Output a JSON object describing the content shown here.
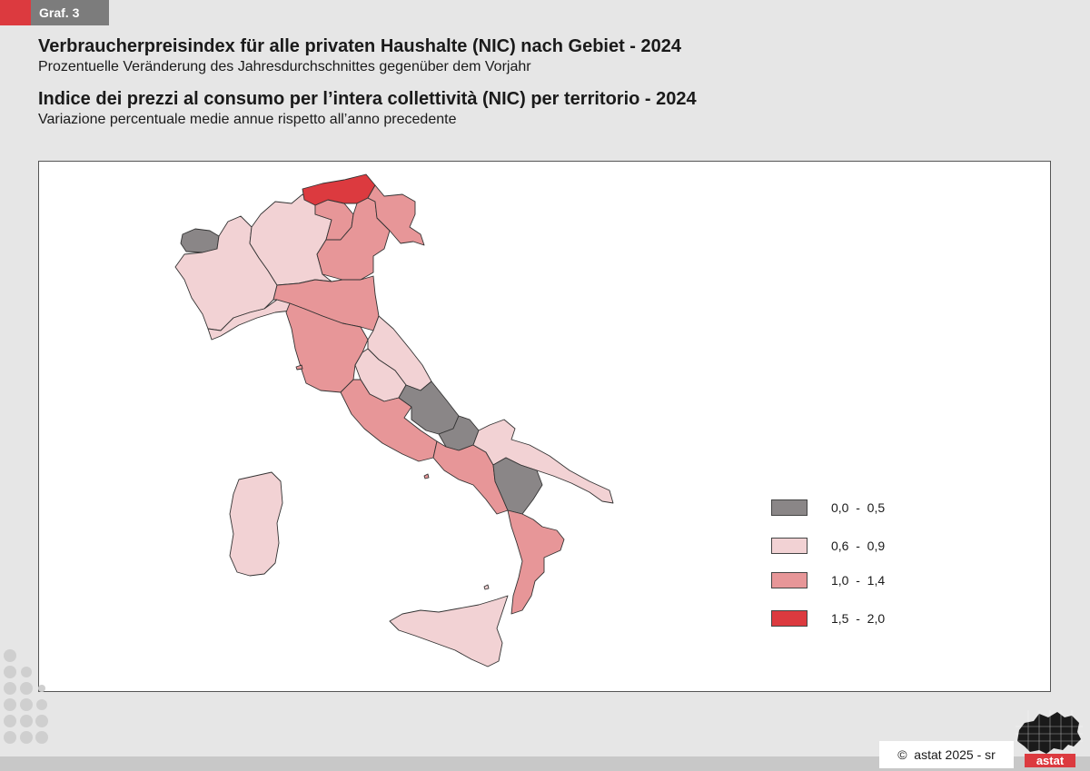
{
  "badge": "Graf. 3",
  "header": {
    "title_de": "Verbraucherpreisindex für alle privaten Haushalte (NIC) nach Gebiet - 2024",
    "subtitle_de": "Prozentuelle Veränderung des Jahresdurchschnittes gegenüber dem Vorjahr",
    "title_it": "Indice dei prezzi al consumo per l’intera collettività (NIC) per territorio - 2024",
    "subtitle_it": "Variazione percentuale medie annue rispetto all’anno precedente"
  },
  "legend": [
    {
      "label": "0,0  -  0,5",
      "color": "#8a8687"
    },
    {
      "label": "0,6  -  0,9",
      "color": "#f2d2d4"
    },
    {
      "label": "1,0  -  1,4",
      "color": "#e79698"
    },
    {
      "label": "1,5  -  2,0",
      "color": "#dc3a3f"
    }
  ],
  "regions": [
    {
      "name": "Bolzano",
      "class": "1,5 - 2,0"
    },
    {
      "name": "Trento",
      "class": "1,0 - 1,4"
    },
    {
      "name": "Veneto",
      "class": "1,0 - 1,4"
    },
    {
      "name": "Friuli-Venezia Giulia",
      "class": "1,0 - 1,4"
    },
    {
      "name": "Valle d'Aosta",
      "class": "0,0 - 0,5"
    },
    {
      "name": "Piemonte",
      "class": "0,6 - 0,9"
    },
    {
      "name": "Lombardia",
      "class": "0,6 - 0,9"
    },
    {
      "name": "Liguria",
      "class": "0,6 - 0,9"
    },
    {
      "name": "Emilia-Romagna",
      "class": "1,0 - 1,4"
    },
    {
      "name": "Toscana",
      "class": "1,0 - 1,4"
    },
    {
      "name": "Marche",
      "class": "0,6 - 0,9"
    },
    {
      "name": "Umbria",
      "class": "0,6 - 0,9"
    },
    {
      "name": "Lazio",
      "class": "1,0 - 1,4"
    },
    {
      "name": "Abruzzo",
      "class": "0,0 - 0,5"
    },
    {
      "name": "Molise",
      "class": "0,0 - 0,5"
    },
    {
      "name": "Campania",
      "class": "1,0 - 1,4"
    },
    {
      "name": "Puglia",
      "class": "0,6 - 0,9"
    },
    {
      "name": "Basilicata",
      "class": "0,0 - 0,5"
    },
    {
      "name": "Calabria",
      "class": "1,0 - 1,4"
    },
    {
      "name": "Sicilia",
      "class": "0,6 - 0,9"
    },
    {
      "name": "Sardegna",
      "class": "0,6 - 0,9"
    }
  ],
  "footer": {
    "copyright_symbol": "©",
    "credit": "astat 2025 - sr",
    "logo_text": "astat"
  }
}
